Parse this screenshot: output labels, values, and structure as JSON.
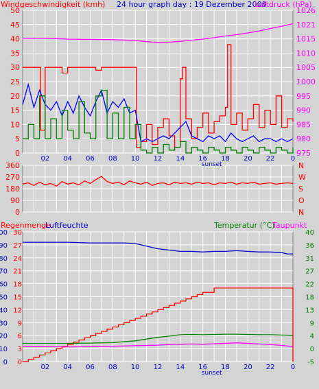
{
  "header": {
    "left_label": "Windgeschwindigkeit (kmh)",
    "center_label": "24 hour graph day : 19 Dezember 2008",
    "right_label": "Luftdruck (hPa)"
  },
  "panel3": {
    "left_label_1": "Regenmenge",
    "left_label_2": "Luftfeuchte",
    "right_label_1": "Temperatur (°C)",
    "right_label_2": "Taupunkt"
  },
  "colors": {
    "background": "#d4d4d4",
    "grid": "#ffffff",
    "frame": "#808080",
    "wind_gust": "#ff0000",
    "wind_avg": "#0000ff",
    "wind_low": "#008000",
    "pressure": "#ff00ff",
    "direction": "#ff0000",
    "rain": "#ff0000",
    "humidity": "#0000cc",
    "temperature": "#008000",
    "dewpoint": "#ff00ff"
  },
  "x_ticks": [
    "02",
    "04",
    "06",
    "08",
    "10",
    "12",
    "14",
    "16",
    "18",
    "20",
    "22"
  ],
  "x_end_tick": "0",
  "sunset_label": "sunset",
  "chart_data": [
    {
      "type": "line",
      "title": "24 hour graph day : 19 Dezember 2008",
      "ylabel": "Windgeschwindigkeit (kmh)",
      "y2label": "Luftdruck (hPa)",
      "x_unit": "hour",
      "xlim": [
        0,
        24
      ],
      "ylim": [
        0,
        50
      ],
      "y_ticks": [
        "50",
        "45",
        "40",
        "35",
        "30",
        "25",
        "20",
        "15",
        "10",
        "5",
        "0"
      ],
      "y2lim": [
        975,
        1026
      ],
      "y2_ticks": [
        "1026",
        "1021",
        "1015",
        "1010",
        "1005",
        "1000",
        "995",
        "990",
        "985",
        "980",
        "975"
      ],
      "series": [
        {
          "name": "Windgeschwindigkeit (kmh)",
          "role": "gust",
          "axis": "left",
          "x": [
            0,
            1,
            1.6,
            2,
            3,
            3.5,
            4,
            5,
            6,
            6.5,
            7,
            8,
            9,
            10,
            10.1,
            10.5,
            11,
            11.5,
            12,
            12.5,
            13,
            13.5,
            14,
            14.2,
            14.5,
            15,
            15.5,
            16,
            16.5,
            17,
            17.5,
            18,
            18.2,
            18.5,
            19,
            19.5,
            20,
            20.5,
            21,
            21.5,
            22,
            22.5,
            23,
            23.5,
            24
          ],
          "y": [
            30,
            30,
            8,
            30,
            30,
            28,
            30,
            30,
            30,
            29,
            30,
            30,
            30,
            30,
            2,
            4,
            10,
            3,
            9,
            12,
            6,
            2,
            26,
            30,
            12,
            5,
            9,
            14,
            7,
            11,
            13,
            16,
            38,
            10,
            14,
            8,
            12,
            17,
            9,
            15,
            10,
            20,
            9,
            12,
            11
          ]
        },
        {
          "name": "average",
          "role": "avg",
          "axis": "left",
          "x": [
            0,
            0.5,
            1,
            1.5,
            2,
            2.5,
            3,
            3.5,
            4,
            4.5,
            5,
            5.5,
            6,
            6.5,
            7,
            7.5,
            8,
            8.5,
            9,
            9.5,
            10,
            10.5,
            11,
            11.5,
            12,
            12.5,
            13,
            13.5,
            14,
            14.5,
            15,
            15.5,
            16,
            16.5,
            17,
            17.5,
            18,
            18.5,
            19,
            19.5,
            20,
            20.5,
            21,
            21.5,
            22,
            22.5,
            23,
            23.5,
            24
          ],
          "y": [
            17,
            24,
            16,
            22,
            17,
            15,
            18,
            13,
            18,
            14,
            20,
            16,
            13,
            18,
            22,
            14,
            18,
            16,
            19,
            14,
            15,
            4,
            5,
            4,
            5,
            6,
            5,
            7,
            9,
            11,
            6,
            5,
            4,
            6,
            5,
            6,
            4,
            7,
            5,
            4,
            5,
            6,
            4,
            5,
            5,
            4,
            5,
            4,
            5
          ]
        },
        {
          "name": "low",
          "role": "low",
          "axis": "left",
          "x": [
            0,
            0.5,
            1,
            1.5,
            2,
            2.5,
            3,
            3.5,
            4,
            4.5,
            5,
            5.5,
            6,
            6.5,
            7,
            7.5,
            8,
            8.5,
            9,
            9.5,
            10,
            10.5,
            11,
            11.5,
            12,
            12.5,
            13,
            13.5,
            14,
            14.5,
            15,
            15.5,
            16,
            16.5,
            17,
            17.5,
            18,
            18.5,
            19,
            19.5,
            20,
            20.5,
            21,
            21.5,
            22,
            22.5,
            23,
            23.5,
            24
          ],
          "y": [
            5,
            10,
            5,
            20,
            5,
            12,
            5,
            15,
            8,
            5,
            18,
            7,
            5,
            20,
            22,
            5,
            14,
            5,
            16,
            5,
            10,
            1,
            0,
            2,
            0,
            3,
            1,
            2,
            4,
            0,
            2,
            1,
            0,
            2,
            1,
            0,
            2,
            1,
            0,
            2,
            1,
            0,
            2,
            1,
            0,
            2,
            1,
            0,
            2
          ]
        },
        {
          "name": "Luftdruck (hPa)",
          "role": "pressure",
          "axis": "right",
          "x": [
            0,
            2,
            4,
            6,
            8,
            10,
            11,
            12,
            13,
            14,
            15,
            16,
            17,
            18,
            19,
            20,
            21,
            22,
            23,
            24
          ],
          "y": [
            1016,
            1016,
            1015.7,
            1015.6,
            1015.5,
            1015.2,
            1014.8,
            1014.5,
            1014.6,
            1014.9,
            1015.3,
            1015.7,
            1016.2,
            1016.8,
            1017.3,
            1017.9,
            1018.6,
            1019.5,
            1020.3,
            1021.2
          ]
        }
      ]
    },
    {
      "type": "line",
      "x_unit": "hour",
      "xlim": [
        0,
        24
      ],
      "ylim": [
        0,
        360
      ],
      "y_ticks": [
        "360",
        "270",
        "180",
        "90",
        "0"
      ],
      "right_ticks": [
        "N",
        "W",
        "S",
        "O",
        "N"
      ],
      "series": [
        {
          "name": "Windrichtung",
          "role": "direction",
          "x": [
            0,
            0.5,
            1,
            1.5,
            2,
            2.5,
            3,
            3.5,
            4,
            4.5,
            5,
            5.5,
            6,
            6.5,
            7,
            7.5,
            8,
            8.5,
            9,
            9.5,
            10,
            10.5,
            11,
            11.5,
            12,
            12.5,
            13,
            13.5,
            14,
            14.5,
            15,
            15.5,
            16,
            16.5,
            17,
            17.5,
            18,
            18.5,
            19,
            19.5,
            20,
            20.5,
            21,
            21.5,
            22,
            22.5,
            23,
            23.5,
            24
          ],
          "y": [
            215,
            225,
            205,
            230,
            210,
            220,
            200,
            235,
            215,
            225,
            210,
            240,
            220,
            250,
            275,
            235,
            220,
            230,
            210,
            240,
            225,
            215,
            230,
            205,
            220,
            225,
            210,
            230,
            220,
            225,
            215,
            230,
            220,
            225,
            210,
            225,
            220,
            230,
            215,
            225,
            220,
            230,
            215,
            220,
            225,
            215,
            220,
            225,
            220
          ]
        }
      ]
    },
    {
      "type": "line",
      "ylabel": "Regenmenge",
      "y1label": "Luftfeuchte",
      "y2label": "Temperatur (°C)",
      "y3label": "Taupunkt",
      "x_unit": "hour",
      "xlim": [
        0,
        24
      ],
      "humidity_lim": [
        0,
        100
      ],
      "humidity_ticks": [
        "100",
        "90",
        "80",
        "70",
        "60",
        "50",
        "40",
        "30",
        "20",
        "10",
        "0"
      ],
      "rain_lim": [
        0,
        30
      ],
      "rain_ticks": [
        "30",
        "27",
        "24",
        "21",
        "18",
        "15",
        "12",
        "9",
        "6",
        "3",
        "0"
      ],
      "temp_lim": [
        -5,
        40
      ],
      "temp_ticks": [
        "40",
        "36",
        "31",
        "27",
        "22",
        "18",
        "13",
        "9",
        "4",
        "0",
        "-5"
      ],
      "series": [
        {
          "name": "Luftfeuchte",
          "role": "humidity",
          "axis": "humidity",
          "x": [
            0,
            2,
            4,
            6,
            8,
            9,
            10,
            11,
            12,
            13,
            14,
            15,
            16,
            17,
            18,
            19,
            20,
            21,
            22,
            23,
            23.5,
            24
          ],
          "y": [
            92,
            92,
            92,
            91.5,
            91.5,
            91.5,
            91,
            89,
            87,
            86,
            85,
            85,
            84.5,
            85,
            85,
            85.5,
            85,
            84.5,
            84.5,
            84,
            83,
            83
          ]
        },
        {
          "name": "Regenmenge",
          "role": "rain",
          "axis": "rain",
          "x": [
            0,
            0.5,
            1,
            1.5,
            2,
            2.5,
            3,
            3.5,
            4,
            4.5,
            5,
            5.5,
            6,
            6.5,
            7,
            7.5,
            8,
            8.5,
            9,
            9.5,
            10,
            10.5,
            11,
            11.5,
            12,
            12.5,
            13,
            13.5,
            14,
            14.5,
            15,
            15.5,
            16,
            17,
            18,
            19,
            20,
            21,
            22,
            23,
            24,
            24
          ],
          "y": [
            0,
            0.5,
            1,
            1.5,
            2,
            2.5,
            3,
            3.5,
            4,
            4.5,
            5,
            5.5,
            6,
            6.5,
            7,
            7.5,
            8,
            8.5,
            9,
            9.5,
            10,
            10.5,
            11,
            11.5,
            12,
            12.5,
            13,
            13.5,
            14,
            14.5,
            15,
            15.5,
            16,
            17,
            17,
            17,
            17,
            17,
            17,
            17,
            17,
            0
          ]
        },
        {
          "name": "Temperatur (°C)",
          "role": "temperature",
          "axis": "temp",
          "x": [
            0,
            2,
            4,
            6,
            8,
            10,
            11,
            12,
            13,
            14,
            15,
            16,
            17,
            18,
            19,
            20,
            21,
            22,
            23,
            24
          ],
          "y": [
            1.3,
            1.3,
            1.3,
            1.4,
            1.6,
            2.2,
            2.8,
            3.4,
            3.8,
            4.3,
            4.4,
            4.3,
            4.4,
            4.5,
            4.5,
            4.4,
            4.3,
            4.3,
            4.2,
            4.1
          ]
        },
        {
          "name": "Taupunkt",
          "role": "dewpoint",
          "axis": "temp",
          "x": [
            0,
            2,
            4,
            6,
            8,
            10,
            11,
            12,
            13,
            14,
            15,
            16,
            17,
            18,
            19,
            20,
            21,
            22,
            23,
            24
          ],
          "y": [
            0.2,
            0.2,
            0.1,
            0.2,
            0.3,
            0.5,
            0.6,
            0.7,
            0.9,
            1.0,
            1.1,
            1.0,
            1.2,
            1.3,
            1.5,
            1.3,
            1.1,
            0.9,
            0.6,
            0.2
          ]
        }
      ]
    }
  ]
}
